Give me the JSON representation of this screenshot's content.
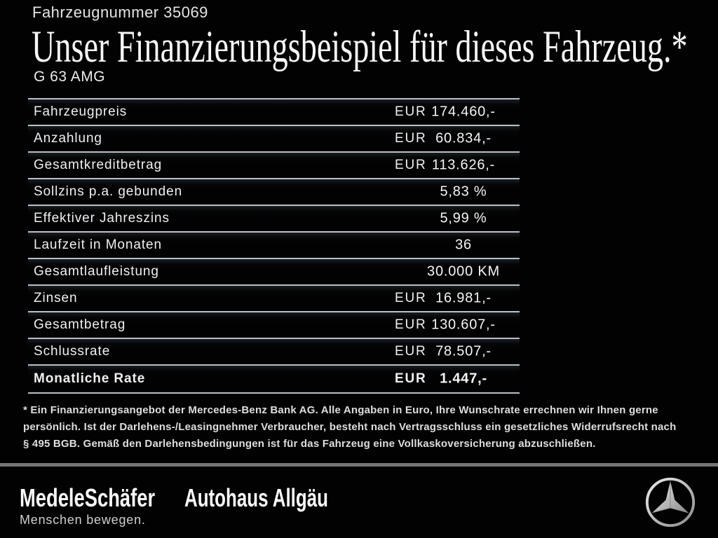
{
  "header": {
    "vehicle_number": "Fahrzeugnummer 35069",
    "title": "Unser Finanzierungsbeispiel für dieses Fahrzeug.*",
    "model": "G 63 AMG"
  },
  "table": {
    "rows": [
      {
        "label": "Fahrzeugpreis",
        "currency": "EUR",
        "value": "174.460,-",
        "bold": false
      },
      {
        "label": "Anzahlung",
        "currency": "EUR",
        "value": "60.834,-",
        "bold": false
      },
      {
        "label": "Gesamtkreditbetrag",
        "currency": "EUR",
        "value": "113.626,-",
        "bold": false
      },
      {
        "label": "Sollzins p.a. gebunden",
        "currency": "",
        "value": "5,83 %",
        "bold": false
      },
      {
        "label": "Effektiver Jahreszins",
        "currency": "",
        "value": "5,99 %",
        "bold": false
      },
      {
        "label": "Laufzeit in Monaten",
        "currency": "",
        "value": "36",
        "bold": false
      },
      {
        "label": "Gesamtlaufleistung",
        "currency": "",
        "value": "30.000 KM",
        "bold": false
      },
      {
        "label": "Zinsen",
        "currency": "EUR",
        "value": "16.981,-",
        "bold": false
      },
      {
        "label": "Gesamtbetrag",
        "currency": "EUR",
        "value": "130.607,-",
        "bold": false
      },
      {
        "label": "Schlussrate",
        "currency": "EUR",
        "value": "78.507,-",
        "bold": false
      },
      {
        "label": "Monatliche Rate",
        "currency": "EUR",
        "value": "1.447,-",
        "bold": true
      }
    ]
  },
  "footnote": {
    "lines": [
      "* Ein Finanzierungsangebot der Mercedes-Benz Bank AG. Alle Angaben in Euro, Ihre Wunschrate errechnen wir Ihnen gerne",
      "persönlich. Ist der Darlehens-/Leasingnehmer Verbraucher, besteht nach Vertragsschluss ein gesetzliches Widerrufsrecht nach",
      "§ 495 BGB. Gemäß den Darlehensbedingungen ist für das Fahrzeug eine Vollkaskoversicherung abzuschließen."
    ]
  },
  "footer": {
    "dealer_name": "MedeleSchäfer",
    "dealer_slogan": "Menschen bewegen.",
    "dealer_name_2": "Autohaus Allgäu",
    "brand_logo": "mercedes-star"
  },
  "colors": {
    "background": "#020202",
    "text": "#f2f2f2",
    "table_line": "#b9c0c6",
    "footer_divider": "#747474"
  }
}
